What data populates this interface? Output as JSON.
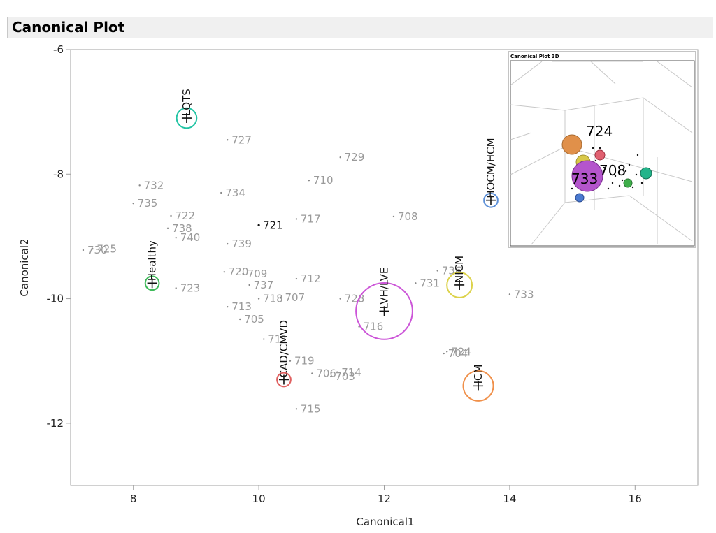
{
  "header": {
    "title": "Canonical Plot"
  },
  "chart_data": {
    "type": "scatter",
    "title": "",
    "xlabel": "Canonical1",
    "ylabel": "Canonical2",
    "xlim": [
      7,
      17
    ],
    "ylim": [
      -13,
      -6
    ],
    "x_ticks": [
      8,
      10,
      12,
      14,
      16
    ],
    "y_ticks": [
      -6,
      -8,
      -10,
      -12
    ],
    "grid": false,
    "points": [
      {
        "label": "727",
        "x": 9.5,
        "y": -7.45
      },
      {
        "label": "729",
        "x": 11.3,
        "y": -7.73
      },
      {
        "label": "732",
        "x": 8.1,
        "y": -8.18
      },
      {
        "label": "710",
        "x": 10.8,
        "y": -8.1
      },
      {
        "label": "734",
        "x": 9.4,
        "y": -8.3
      },
      {
        "label": "735",
        "x": 8.0,
        "y": -8.47
      },
      {
        "label": "722",
        "x": 8.6,
        "y": -8.67
      },
      {
        "label": "708",
        "x": 12.15,
        "y": -8.68
      },
      {
        "label": "717",
        "x": 10.6,
        "y": -8.72
      },
      {
        "label": "721",
        "x": 10.0,
        "y": -8.82,
        "highlight": true
      },
      {
        "label": "738",
        "x": 8.55,
        "y": -8.87
      },
      {
        "label": "740",
        "x": 8.68,
        "y": -9.02
      },
      {
        "label": "739",
        "x": 9.5,
        "y": -9.12
      },
      {
        "label": "730",
        "x": 7.2,
        "y": -9.22
      },
      {
        "label": "725",
        "x": 7.35,
        "y": -9.2
      },
      {
        "label": "720",
        "x": 9.45,
        "y": -9.57
      },
      {
        "label": "709",
        "x": 9.75,
        "y": -9.6
      },
      {
        "label": "712",
        "x": 10.6,
        "y": -9.68
      },
      {
        "label": "736",
        "x": 12.85,
        "y": -9.55
      },
      {
        "label": "731",
        "x": 12.5,
        "y": -9.75
      },
      {
        "label": "737",
        "x": 9.85,
        "y": -9.78
      },
      {
        "label": "723",
        "x": 8.68,
        "y": -9.83
      },
      {
        "label": "733",
        "x": 14.0,
        "y": -9.93
      },
      {
        "label": "718",
        "x": 10.0,
        "y": -10.0
      },
      {
        "label": "707",
        "x": 10.35,
        "y": -9.98
      },
      {
        "label": "728",
        "x": 11.3,
        "y": -10.0
      },
      {
        "label": "713",
        "x": 9.5,
        "y": -10.13
      },
      {
        "label": "705",
        "x": 9.7,
        "y": -10.33
      },
      {
        "label": "716",
        "x": 11.6,
        "y": -10.45
      },
      {
        "label": "711",
        "x": 10.08,
        "y": -10.65
      },
      {
        "label": "724",
        "x": 13.0,
        "y": -10.85
      },
      {
        "label": "704",
        "x": 12.95,
        "y": -10.88
      },
      {
        "label": "719",
        "x": 10.5,
        "y": -11.0
      },
      {
        "label": "706",
        "x": 10.85,
        "y": -11.2
      },
      {
        "label": "714",
        "x": 11.25,
        "y": -11.18
      },
      {
        "label": "703",
        "x": 11.15,
        "y": -11.25
      },
      {
        "label": "715",
        "x": 10.6,
        "y": -11.77
      }
    ],
    "groups": [
      {
        "name": "LQTS",
        "x": 8.85,
        "y": -7.1,
        "radius": 0.16,
        "color": "#22c4a4"
      },
      {
        "name": "HOCM/HCM",
        "x": 13.7,
        "y": -8.42,
        "radius": 0.11,
        "color": "#5b8fd8"
      },
      {
        "name": "Healthy",
        "x": 8.3,
        "y": -9.75,
        "radius": 0.11,
        "color": "#3fba5a"
      },
      {
        "name": "NICM",
        "x": 13.2,
        "y": -9.78,
        "radius": 0.2,
        "color": "#dcd24a"
      },
      {
        "name": "LVH/LVE",
        "x": 12.0,
        "y": -10.2,
        "radius": 0.45,
        "color": "#cc55d8"
      },
      {
        "name": "CAD/CMVD",
        "x": 10.4,
        "y": -11.3,
        "radius": 0.11,
        "color": "#e06060"
      },
      {
        "name": "ICM",
        "x": 13.5,
        "y": -11.4,
        "radius": 0.24,
        "color": "#f0904a"
      }
    ],
    "inset": {
      "title": "Canonical Plot 3D",
      "labels": [
        "724",
        "708",
        "733"
      ]
    }
  }
}
